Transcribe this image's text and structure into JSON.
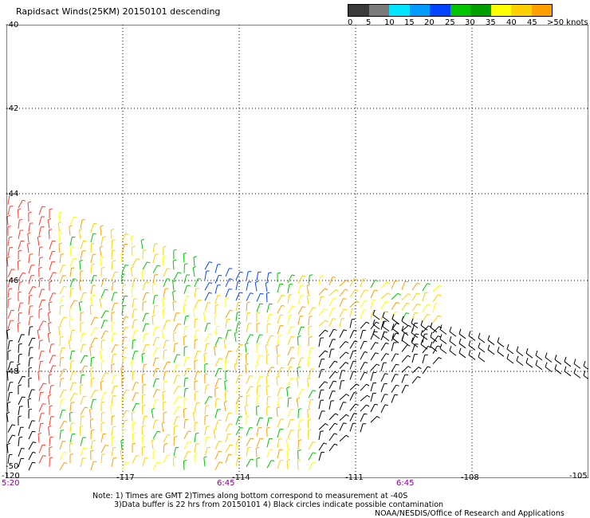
{
  "title": "Rapidsact Winds(25KM) 20150101 descending",
  "legend": {
    "colors": [
      "#3a3a3a",
      "#7a7a7a",
      "#00e5ff",
      "#009bff",
      "#0044ff",
      "#00c600",
      "#00a000",
      "#ffff00",
      "#ffd000",
      "#ffa000",
      "#ff6a00",
      "#ff2d2d",
      "#e00000",
      "#6b3410",
      "#a06030",
      "#ff00ff",
      "#b000e0",
      "#5a0090",
      "#2a0060",
      "#10002a"
    ],
    "labels": [
      "0",
      "5",
      "10",
      "15",
      "20",
      "25",
      "30",
      "35",
      "40",
      "45",
      ">50 knots"
    ]
  },
  "map": {
    "lon_range": [
      -120,
      -105
    ],
    "lat_range": [
      -50,
      -40
    ],
    "lon_ticks": [
      "-120",
      "-117",
      "-114",
      "-111",
      "-108",
      "-105"
    ],
    "lat_ticks": [
      "-40",
      "-42",
      "-44",
      "-46",
      "-48",
      "-50"
    ],
    "time_labels": [
      "5:20",
      "6:45",
      "6:45"
    ],
    "grid": "dotted"
  },
  "notes": {
    "line1": "Note: 1) Times are GMT 2)Times along bottom correspond to measurement at -40S",
    "line2": "3)Data buffer is 22 hrs from 20150101 4) Black circles indicate possible contamination",
    "credit": "NOAA/NESDIS/Office of Research and Applications"
  }
}
